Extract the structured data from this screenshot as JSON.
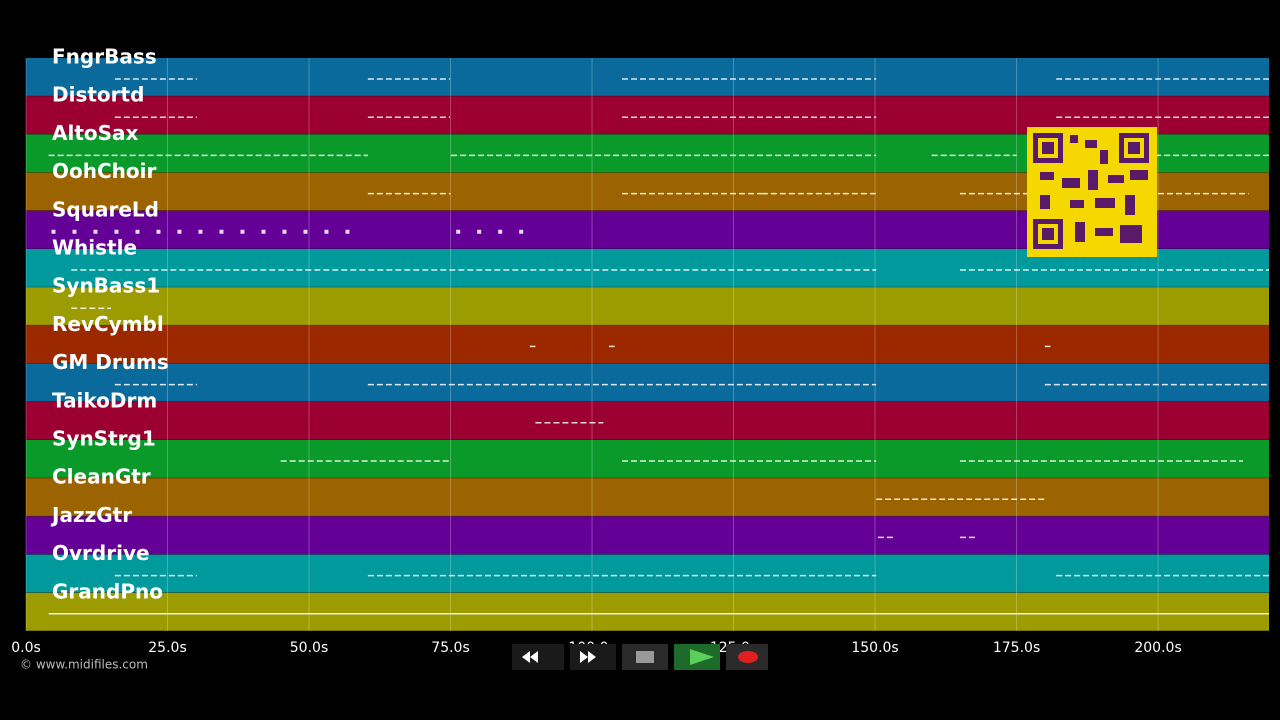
{
  "timeline": {
    "xlim": [
      0,
      219.6
    ],
    "xticks": [
      {
        "value": 0,
        "label": "0.0s"
      },
      {
        "value": 25,
        "label": "25.0s"
      },
      {
        "value": 50,
        "label": "50.0s"
      },
      {
        "value": 75,
        "label": "75.0s"
      },
      {
        "value": 100,
        "label": "100.0s"
      },
      {
        "value": 125,
        "label": "125.0s"
      },
      {
        "value": 150,
        "label": "150.0s"
      },
      {
        "value": 175,
        "label": "175.0s"
      },
      {
        "value": 200,
        "label": "200.0s"
      }
    ],
    "tracks": [
      {
        "name": "FngrBass",
        "color": "#0a6a9c",
        "notes": [
          [
            15.7,
            30.2
          ],
          [
            60.4,
            74.9
          ],
          [
            105.3,
            150.2
          ],
          [
            182,
            219.6
          ]
        ]
      },
      {
        "name": "Distortd",
        "color": "#9c0032",
        "notes": [
          [
            15.7,
            30.2
          ],
          [
            60.4,
            74.9
          ],
          [
            105.3,
            150.2
          ],
          [
            182,
            219.6
          ]
        ]
      },
      {
        "name": "AltoSax",
        "color": "#0a9a2a",
        "notes": [
          [
            4,
            60.4
          ],
          [
            75.1,
            150.2
          ],
          [
            160,
            175
          ],
          [
            182,
            219.6
          ]
        ]
      },
      {
        "name": "OohChoir",
        "color": "#9c6400",
        "notes": [
          [
            60.4,
            75
          ],
          [
            105.3,
            130
          ],
          [
            130,
            150.2
          ],
          [
            165,
            216
          ]
        ]
      },
      {
        "name": "SquareLd",
        "color": "#640096",
        "notes": [
          [
            4.5,
            58
          ],
          [
            76,
            88
          ]
        ]
      },
      {
        "name": "Whistle",
        "color": "#00999c",
        "notes": [
          [
            8,
            150.2
          ],
          [
            165,
            219.6
          ]
        ]
      },
      {
        "name": "SynBass1",
        "color": "#9c9c00",
        "notes": [
          [
            8,
            15
          ]
        ]
      },
      {
        "name": "RevCymbl",
        "color": "#9c2800",
        "notes": [
          [
            89,
            90
          ],
          [
            103,
            104
          ],
          [
            180,
            181
          ]
        ]
      },
      {
        "name": "GM Drums",
        "color": "#0a6a9c",
        "notes": [
          [
            15.7,
            30.2
          ],
          [
            60.4,
            150.2
          ],
          [
            180,
            219.6
          ]
        ]
      },
      {
        "name": "TaikoDrm",
        "color": "#9c0032",
        "notes": [
          [
            90,
            102
          ]
        ]
      },
      {
        "name": "SynStrg1",
        "color": "#0a9a2a",
        "notes": [
          [
            45,
            75
          ],
          [
            105.3,
            150.2
          ],
          [
            165,
            215
          ]
        ]
      },
      {
        "name": "CleanGtr",
        "color": "#9c6400",
        "notes": [
          [
            150.2,
            180.2
          ]
        ]
      },
      {
        "name": "JazzGtr",
        "color": "#640096",
        "notes": [
          [
            150.5,
            153.5
          ],
          [
            165,
            168
          ]
        ]
      },
      {
        "name": "Ovrdrive",
        "color": "#00999c",
        "notes": [
          [
            15.7,
            30.2
          ],
          [
            60.4,
            150.2
          ],
          [
            182,
            219.6
          ]
        ]
      },
      {
        "name": "GrandPno",
        "color": "#9c9c00",
        "notes": [
          [
            4,
            219.6
          ]
        ]
      }
    ]
  },
  "footer": {
    "copyright": "© www.midifiles.com"
  }
}
